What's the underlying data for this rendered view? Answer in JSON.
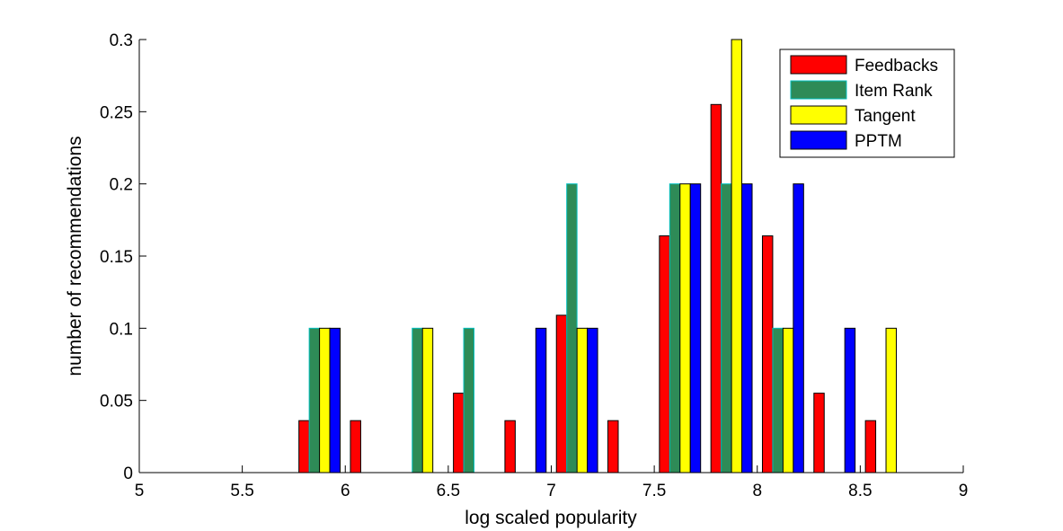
{
  "chart_data": {
    "type": "bar",
    "xlabel": "log scaled popularity",
    "ylabel": "number of recommendations",
    "xlim": [
      5,
      9
    ],
    "ylim": [
      0,
      0.3
    ],
    "xticks": [
      "5",
      "5.5",
      "6",
      "6.5",
      "7",
      "7.5",
      "8",
      "8.5",
      "9"
    ],
    "yticks": [
      "0",
      "0.05",
      "0.1",
      "0.15",
      "0.2",
      "0.25",
      "0.3"
    ],
    "grid": false,
    "legend_position": "top-right",
    "bin_centers": [
      5.125,
      5.375,
      5.625,
      5.875,
      6.125,
      6.375,
      6.625,
      6.875,
      7.125,
      7.375,
      7.625,
      7.875,
      8.125,
      8.375,
      8.625,
      8.875
    ],
    "series": [
      {
        "name": "Feedbacks",
        "color": "#ff0000",
        "values": [
          0,
          0,
          0,
          0.036,
          0.036,
          0,
          0.055,
          0.036,
          0.109,
          0.036,
          0.164,
          0.255,
          0.164,
          0.055,
          0.036,
          0
        ]
      },
      {
        "name": "Item Rank",
        "color": "#2e8b57",
        "edge": "#00bfbf",
        "values": [
          0,
          0,
          0,
          0.1,
          0,
          0.1,
          0.1,
          0,
          0.2,
          0,
          0.2,
          0.2,
          0.1,
          0,
          0,
          0
        ]
      },
      {
        "name": "Tangent",
        "color": "#ffff00",
        "values": [
          0,
          0,
          0,
          0.1,
          0,
          0.1,
          0,
          0,
          0.1,
          0,
          0.2,
          0.3,
          0.1,
          0,
          0.1,
          0
        ]
      },
      {
        "name": "PPTM",
        "color": "#0000ff",
        "values": [
          0,
          0,
          0,
          0.1,
          0,
          0,
          0,
          0.1,
          0.1,
          0,
          0.2,
          0.2,
          0.2,
          0.1,
          0,
          0
        ]
      }
    ]
  }
}
